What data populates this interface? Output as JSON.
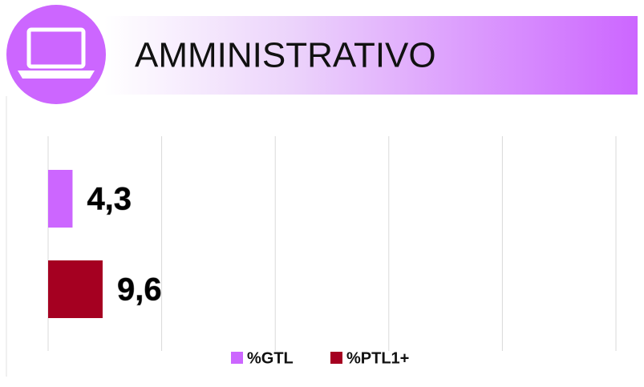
{
  "chart_data": {
    "type": "hbar",
    "title": "AMMINISTRATIVO",
    "categories": [
      null
    ],
    "series": [
      {
        "name": "%GTL",
        "color": "#cc66ff",
        "values": [
          4.3
        ],
        "value_labels": [
          "4,3"
        ]
      },
      {
        "name": "%PTL1+",
        "color": "#a50021",
        "values": [
          9.6
        ],
        "value_labels": [
          "9,6"
        ]
      }
    ],
    "xlim": [
      0,
      100
    ],
    "xticks": [
      0,
      20,
      40,
      60,
      80,
      100
    ],
    "grid": true,
    "legend": "bottom"
  }
}
